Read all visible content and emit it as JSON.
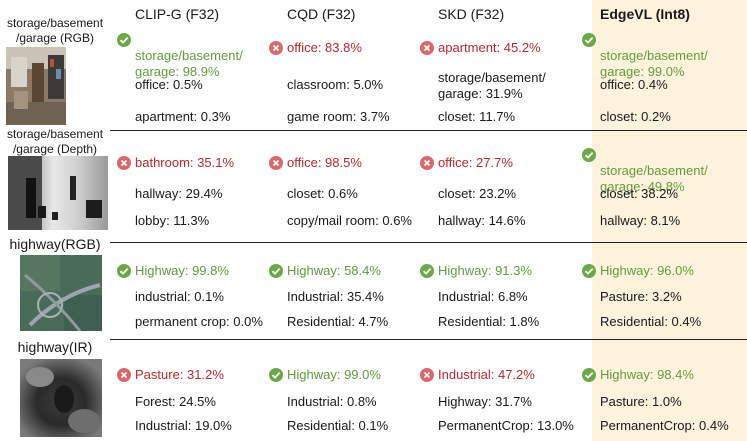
{
  "headers": [
    "CLIP-G (F32)",
    "CQD (F32)",
    "SKD (F32)",
    "EdgeVL (Int8)"
  ],
  "rows": [
    {
      "label": "storage/basement\n/garage (RGB)",
      "cells": [
        {
          "top": {
            "text": "storage/basement/\ngarage: 98.9%",
            "status": "correct"
          },
          "others": [
            "office: 0.5%",
            "apartment: 0.3%"
          ]
        },
        {
          "top": {
            "text": "office: 83.8%",
            "status": "wrong"
          },
          "others": [
            "classroom: 5.0%",
            "game room: 3.7%"
          ]
        },
        {
          "top": {
            "text": "apartment: 45.2%",
            "status": "wrong"
          },
          "others": [
            "storage/basement/\ngarage: 31.9%",
            "closet: 11.7%"
          ]
        },
        {
          "top": {
            "text": "storage/basement/\ngarage: 99.0%",
            "status": "correct"
          },
          "others": [
            "office: 0.4%",
            "closet: 0.2%"
          ]
        }
      ]
    },
    {
      "label": "storage/basement\n/garage (Depth)",
      "cells": [
        {
          "top": {
            "text": "bathroom: 35.1%",
            "status": "wrong"
          },
          "others": [
            "hallway: 29.4%",
            "lobby: 11.3%"
          ]
        },
        {
          "top": {
            "text": "office: 98.5%",
            "status": "wrong"
          },
          "others": [
            "closet: 0.6%",
            "copy/mail room: 0.6%"
          ]
        },
        {
          "top": {
            "text": "office: 27.7%",
            "status": "wrong"
          },
          "others": [
            "closet: 23.2%",
            "hallway: 14.6%"
          ]
        },
        {
          "top": {
            "text": "storage/basement/\ngarage: 49.8%",
            "status": "correct"
          },
          "others": [
            "closet: 38.2%",
            "hallway: 8.1%"
          ]
        }
      ]
    },
    {
      "label": "highway(RGB)",
      "cells": [
        {
          "top": {
            "text": "Highway: 99.8%",
            "status": "correct"
          },
          "others": [
            "industrial: 0.1%",
            "permanent crop: 0.0%"
          ]
        },
        {
          "top": {
            "text": "Highway: 58.4%",
            "status": "correct"
          },
          "others": [
            "Industrial: 35.4%",
            "Residential: 4.7%"
          ]
        },
        {
          "top": {
            "text": "Highway: 91.3%",
            "status": "correct"
          },
          "others": [
            "Industrial: 6.8%",
            "Residential: 1.8%"
          ]
        },
        {
          "top": {
            "text": "Highway: 96.0%",
            "status": "correct"
          },
          "others": [
            "Pasture: 3.2%",
            "Residential: 0.4%"
          ]
        }
      ]
    },
    {
      "label": "highway(IR)",
      "cells": [
        {
          "top": {
            "text": "Pasture: 31.2%",
            "status": "wrong"
          },
          "others": [
            "Forest: 24.5%",
            "Industrial: 19.0%"
          ]
        },
        {
          "top": {
            "text": "Highway: 99.0%",
            "status": "correct"
          },
          "others": [
            "Industrial: 0.8%",
            "Residential: 0.1%"
          ]
        },
        {
          "top": {
            "text": "Industrial: 47.2%",
            "status": "wrong"
          },
          "others": [
            "Highway: 31.7%",
            "PermanentCrop: 13.0%"
          ]
        },
        {
          "top": {
            "text": "Highway: 98.4%",
            "status": "correct"
          },
          "others": [
            "Pasture: 1.0%",
            "PermanentCrop: 0.4%"
          ]
        }
      ]
    }
  ],
  "colors": {
    "correct": "#5e9e3a",
    "wrong": "#c0262b",
    "highlight": "#fdf3dd"
  }
}
